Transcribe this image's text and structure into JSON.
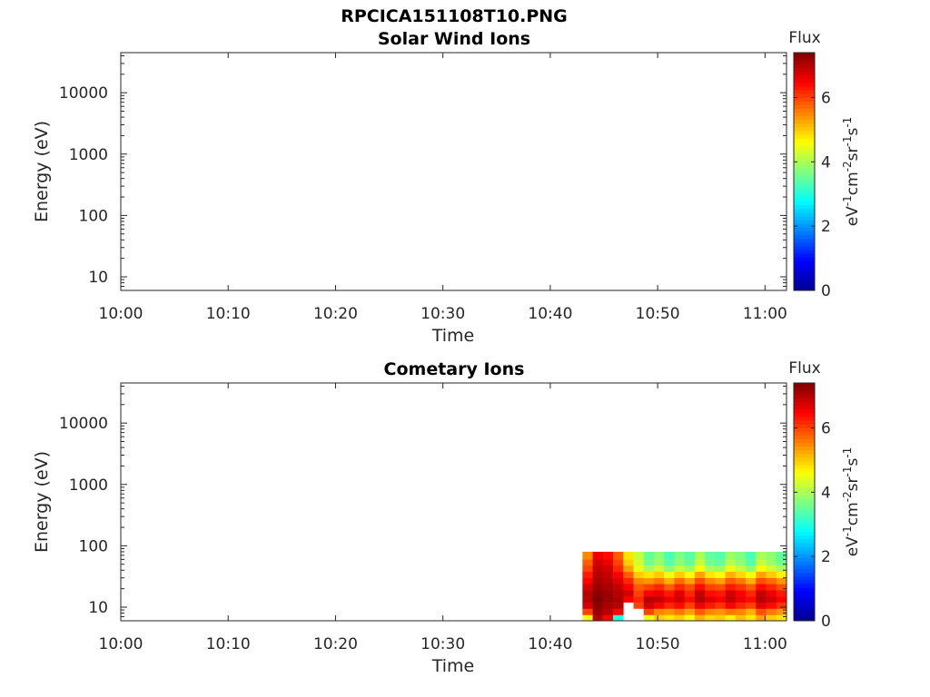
{
  "figure": {
    "suptitle": "RPCICA151108T10.PNG"
  },
  "colormap": [
    "#00008f",
    "#0000ff",
    "#0080ff",
    "#00ffff",
    "#80ff80",
    "#ffff00",
    "#ff8000",
    "#ff0000",
    "#800000"
  ],
  "chart_data": [
    {
      "type": "heatmap",
      "title": "Solar Wind Ions",
      "xlabel": "Time",
      "ylabel": "Energy (eV)",
      "x_ticks": [
        "10:00",
        "10:10",
        "10:20",
        "10:30",
        "10:40",
        "10:50",
        "11:00"
      ],
      "x_range": [
        "10:00",
        "11:02"
      ],
      "y_scale": "log",
      "y_ticks": [
        "10",
        "100",
        "1000",
        "10000"
      ],
      "y_range": [
        6,
        45000
      ],
      "colorbar": {
        "title": "Flux",
        "label": "eV-1cm-2sr-1s-1",
        "ticks": [
          "0",
          "2",
          "4",
          "6"
        ],
        "range": [
          0,
          7.4
        ]
      },
      "cells": []
    },
    {
      "type": "heatmap",
      "title": "Cometary Ions",
      "xlabel": "Time",
      "ylabel": "Energy (eV)",
      "x_ticks": [
        "10:00",
        "10:10",
        "10:20",
        "10:30",
        "10:40",
        "10:50",
        "11:00"
      ],
      "x_range": [
        "10:00",
        "11:02"
      ],
      "y_scale": "log",
      "y_ticks": [
        "10",
        "100",
        "1000",
        "10000"
      ],
      "y_range": [
        6,
        45000
      ],
      "colorbar": {
        "title": "Flux",
        "label": "eV-1cm-2sr-1s-1",
        "ticks": [
          "0",
          "2",
          "4",
          "6"
        ],
        "range": [
          0,
          7.4
        ]
      },
      "data_extent": {
        "time_start": "10:43",
        "time_end": "11:02",
        "energy_min_eV": 6,
        "energy_max_eV": 80
      },
      "energy_bins_eV": [
        6,
        7.5,
        9.5,
        12,
        15,
        19,
        24,
        30,
        38,
        48,
        60,
        80
      ],
      "flux_rows_low_to_high_energy": [
        [
          4.5,
          7.0,
          6.5,
          3.0,
          0.0,
          0.0,
          4.5,
          5.0,
          4.8,
          5.0,
          4.6,
          5.2,
          4.9,
          5.0,
          4.7,
          5.1,
          4.8,
          5.3,
          5.0,
          4.8
        ],
        [
          6.0,
          7.2,
          7.0,
          6.5,
          0.0,
          0.0,
          6.0,
          5.5,
          5.4,
          5.6,
          5.3,
          5.8,
          5.5,
          5.4,
          5.6,
          5.5,
          5.2,
          5.9,
          5.6,
          5.4
        ],
        [
          6.8,
          7.3,
          7.1,
          7.0,
          0.0,
          6.0,
          6.8,
          6.5,
          6.2,
          6.4,
          6.0,
          6.6,
          6.3,
          6.1,
          6.5,
          6.2,
          6.0,
          6.7,
          6.4,
          6.1
        ],
        [
          7.0,
          7.4,
          7.2,
          7.1,
          6.5,
          6.2,
          7.0,
          6.9,
          6.6,
          6.8,
          6.4,
          7.0,
          6.7,
          6.5,
          6.9,
          6.6,
          6.4,
          7.0,
          6.8,
          6.5
        ],
        [
          7.0,
          7.3,
          7.2,
          7.0,
          6.8,
          6.0,
          6.5,
          6.6,
          6.3,
          6.7,
          6.2,
          6.9,
          6.4,
          6.3,
          6.8,
          6.5,
          6.2,
          6.9,
          6.6,
          6.3
        ],
        [
          6.8,
          7.2,
          7.1,
          6.9,
          6.5,
          5.8,
          6.0,
          6.2,
          5.8,
          6.2,
          5.9,
          6.4,
          6.0,
          5.9,
          6.3,
          6.1,
          5.8,
          6.4,
          6.2,
          5.9
        ],
        [
          6.5,
          7.1,
          7.0,
          6.7,
          6.2,
          5.5,
          5.4,
          5.6,
          5.2,
          5.7,
          5.3,
          5.9,
          5.5,
          5.3,
          5.8,
          5.6,
          5.2,
          5.9,
          5.7,
          5.4
        ],
        [
          6.3,
          7.0,
          6.9,
          6.5,
          5.8,
          5.0,
          4.8,
          5.0,
          4.5,
          5.0,
          4.6,
          5.3,
          4.8,
          4.6,
          5.2,
          4.9,
          4.5,
          5.3,
          5.0,
          4.7
        ],
        [
          6.0,
          6.9,
          6.8,
          6.2,
          5.3,
          4.5,
          4.0,
          4.3,
          3.8,
          4.2,
          3.9,
          4.6,
          4.0,
          3.9,
          4.5,
          4.2,
          3.8,
          4.6,
          4.3,
          4.0
        ],
        [
          5.8,
          6.8,
          6.6,
          6.0,
          5.0,
          4.3,
          3.6,
          3.9,
          3.4,
          3.8,
          3.5,
          4.2,
          3.6,
          3.5,
          4.1,
          3.8,
          3.4,
          4.2,
          3.9,
          3.6
        ],
        [
          5.5,
          6.6,
          6.4,
          5.8,
          4.8,
          4.2,
          3.5,
          3.8,
          3.3,
          3.7,
          3.4,
          4.0,
          3.5,
          3.4,
          3.9,
          3.7,
          3.3,
          4.0,
          3.8,
          3.5
        ]
      ]
    }
  ]
}
